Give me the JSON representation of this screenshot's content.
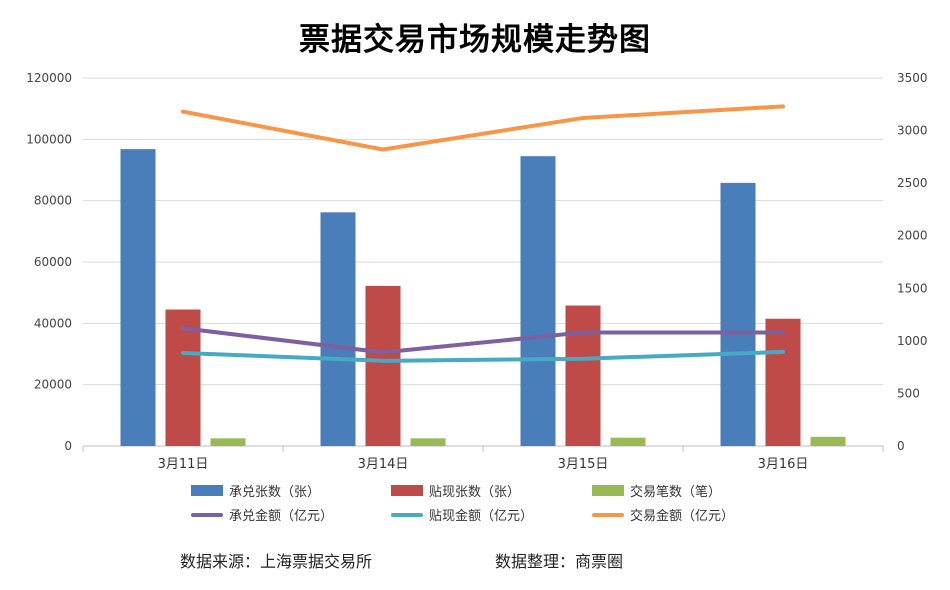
{
  "chart_data": {
    "type": "bar+line",
    "title": "票据交易市场规模走势图",
    "categories": [
      "3月11日",
      "3月14日",
      "3月15日",
      "3月16日"
    ],
    "y_left": {
      "ylim": [
        0,
        120000
      ],
      "ticks": [
        "0",
        "20000",
        "40000",
        "60000",
        "80000",
        "100000",
        "120000"
      ]
    },
    "y_right": {
      "ylim": [
        0,
        3500
      ],
      "ticks": [
        "0",
        "500",
        "1000",
        "1500",
        "2000",
        "2500",
        "3000",
        "3500"
      ]
    },
    "grid": true,
    "legend_position": "bottom",
    "bar_series": [
      {
        "name": "承兑张数（张）",
        "color": "#4a7ebb",
        "values": [
          96800,
          76200,
          94500,
          85800
        ]
      },
      {
        "name": "贴现张数（张）",
        "color": "#be4b48",
        "values": [
          44500,
          52200,
          45800,
          41500
        ]
      },
      {
        "name": "交易笔数（笔）",
        "color": "#98b954",
        "values": [
          2500,
          2500,
          2700,
          3000
        ]
      }
    ],
    "line_series": [
      {
        "name": "承兑金额（亿元）",
        "color": "#7d60a0",
        "values": [
          1120,
          890,
          1080,
          1080
        ]
      },
      {
        "name": "贴现金额（亿元）",
        "color": "#46aac5",
        "values": [
          885,
          810,
          830,
          895
        ]
      },
      {
        "name": "交易金额（亿元）",
        "color": "#f79646",
        "values": [
          3180,
          2820,
          3120,
          3230
        ]
      }
    ]
  },
  "footer": {
    "source": "数据来源：上海票据交易所",
    "compiler": "数据整理：商票圈"
  }
}
